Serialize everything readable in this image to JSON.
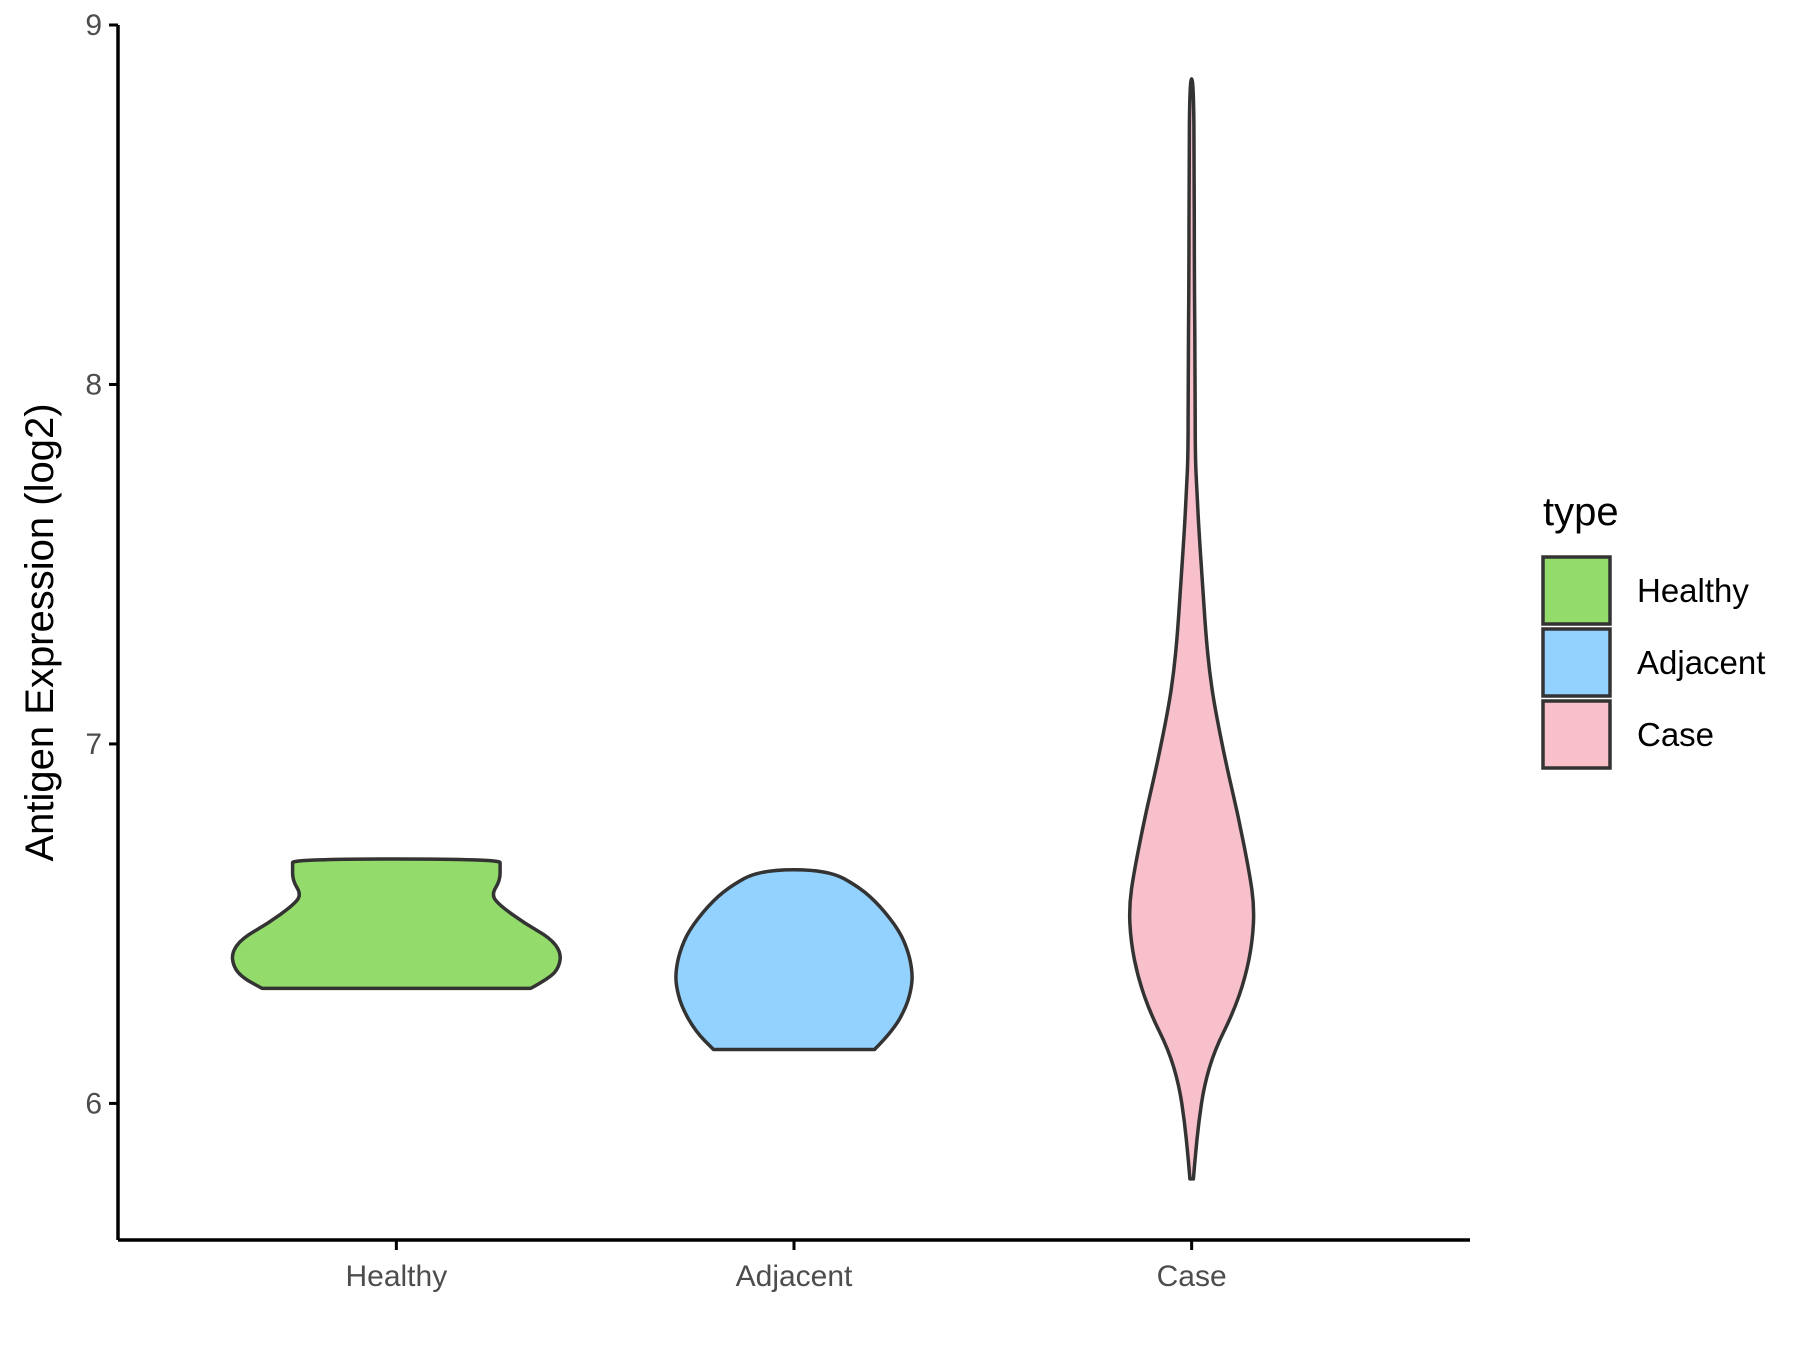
{
  "chart_data": {
    "type": "violin",
    "categories": [
      "Healthy",
      "Adjacent",
      "Case"
    ],
    "ylabel": "Antigen Expression (log2)",
    "xlabel": "",
    "ylim": [
      5.62,
      9.0
    ],
    "yticks": [
      6,
      7,
      8,
      9
    ],
    "legend": {
      "title": "type",
      "position": "right",
      "entries": [
        "Healthy",
        "Adjacent",
        "Case"
      ]
    },
    "grid": false,
    "series": [
      {
        "name": "Healthy",
        "color": "#93DB6A",
        "min": 6.32,
        "max": 6.68,
        "profile": [
          [
            6.32,
            0.75
          ],
          [
            6.35,
            0.86
          ],
          [
            6.38,
            0.91
          ],
          [
            6.42,
            0.92
          ],
          [
            6.46,
            0.86
          ],
          [
            6.5,
            0.72
          ],
          [
            6.55,
            0.58
          ],
          [
            6.58,
            0.53
          ],
          [
            6.62,
            0.58
          ],
          [
            6.66,
            0.58
          ],
          [
            6.68,
            0.58
          ]
        ]
      },
      {
        "name": "Adjacent",
        "color": "#93D2FF",
        "min": 6.15,
        "max": 6.65,
        "profile": [
          [
            6.15,
            0.45
          ],
          [
            6.2,
            0.55
          ],
          [
            6.27,
            0.63
          ],
          [
            6.33,
            0.66
          ],
          [
            6.37,
            0.66
          ],
          [
            6.42,
            0.64
          ],
          [
            6.48,
            0.59
          ],
          [
            6.55,
            0.48
          ],
          [
            6.6,
            0.37
          ],
          [
            6.65,
            0.19
          ]
        ]
      },
      {
        "name": "Case",
        "color": "#F7C0CB",
        "min": 5.79,
        "max": 8.85,
        "profile": [
          [
            5.79,
            0.01
          ],
          [
            5.85,
            0.02
          ],
          [
            5.95,
            0.04
          ],
          [
            6.05,
            0.07
          ],
          [
            6.15,
            0.13
          ],
          [
            6.25,
            0.23
          ],
          [
            6.35,
            0.3
          ],
          [
            6.45,
            0.34
          ],
          [
            6.55,
            0.35
          ],
          [
            6.65,
            0.32
          ],
          [
            6.8,
            0.26
          ],
          [
            6.95,
            0.19
          ],
          [
            7.1,
            0.13
          ],
          [
            7.2,
            0.1
          ],
          [
            7.3,
            0.08
          ],
          [
            7.45,
            0.06
          ],
          [
            7.6,
            0.04
          ],
          [
            7.7,
            0.03
          ],
          [
            7.8,
            0.02
          ],
          [
            8.0,
            0.02
          ],
          [
            8.3,
            0.015
          ],
          [
            8.6,
            0.015
          ],
          [
            8.85,
            0.01
          ]
        ]
      }
    ]
  }
}
